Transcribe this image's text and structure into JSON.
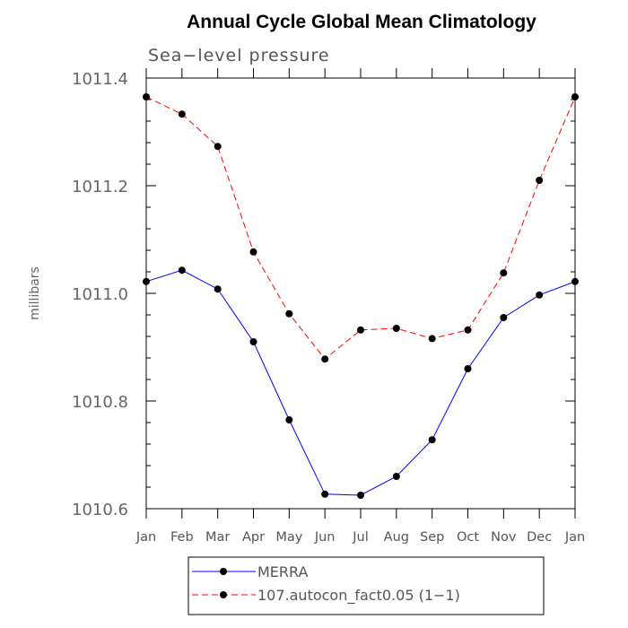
{
  "chart_data": {
    "type": "line",
    "title": "Annual Cycle Global Mean Climatology",
    "subtitle": "Sea−level pressure",
    "xlabel": "",
    "ylabel": "millibars",
    "categories": [
      "Jan",
      "Feb",
      "Mar",
      "Apr",
      "May",
      "Jun",
      "Jul",
      "Aug",
      "Sep",
      "Oct",
      "Nov",
      "Dec",
      "Jan"
    ],
    "ylim": [
      1010.6,
      1011.4
    ],
    "yticks": [
      "1010.6",
      "1010.8",
      "1011.0",
      "1011.2",
      "1011.4"
    ],
    "ytick_values": [
      1010.6,
      1010.8,
      1011.0,
      1011.2,
      1011.4
    ],
    "grid": false,
    "legend_position": "bottom",
    "series": [
      {
        "name": "MERRA",
        "color": "#0000ff",
        "line_style": "solid",
        "marker": "filled-circle",
        "values": [
          1011.022,
          1011.043,
          1011.008,
          1010.91,
          1010.765,
          1010.627,
          1010.625,
          1010.66,
          1010.728,
          1010.86,
          1010.955,
          1010.997,
          1011.022
        ]
      },
      {
        "name": "107.autocon_fact0.05 (1−1)",
        "color": "#ff0000",
        "line_style": "dashed",
        "marker": "filled-circle",
        "values": [
          1011.365,
          1011.333,
          1011.273,
          1011.077,
          1010.962,
          1010.878,
          1010.932,
          1010.935,
          1010.916,
          1010.932,
          1011.038,
          1011.21,
          1011.365
        ]
      }
    ]
  }
}
